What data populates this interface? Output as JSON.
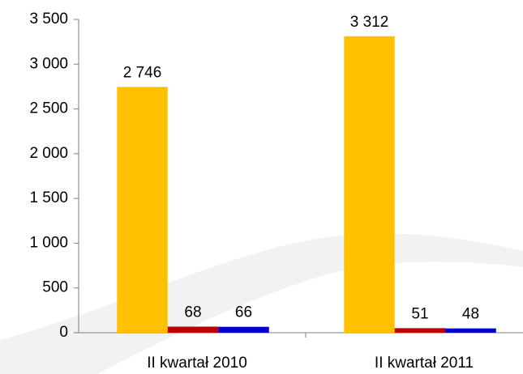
{
  "chart_data": {
    "type": "bar",
    "categories": [
      "II kwartał 2010",
      "II kwartał 2011"
    ],
    "series": [
      {
        "color": "#FFC000",
        "values": [
          2746,
          3312
        ],
        "value_labels": [
          "2 746",
          "3 312"
        ]
      },
      {
        "color": "#C00000",
        "values": [
          68,
          51
        ]
      },
      {
        "color": "#0000CC",
        "values": [
          66,
          48
        ]
      }
    ],
    "ylim": [
      0,
      3500
    ],
    "yticks": [
      0,
      500,
      {
        "value": 1000,
        "label": "1 000"
      },
      {
        "value": 1500,
        "label": "1 500"
      },
      {
        "value": 2000,
        "label": "2 000"
      },
      {
        "value": 2500,
        "label": "2 500"
      },
      {
        "value": 3000,
        "label": "3 000"
      },
      {
        "value": 3500,
        "label": "3 500"
      }
    ],
    "grid": false
  }
}
